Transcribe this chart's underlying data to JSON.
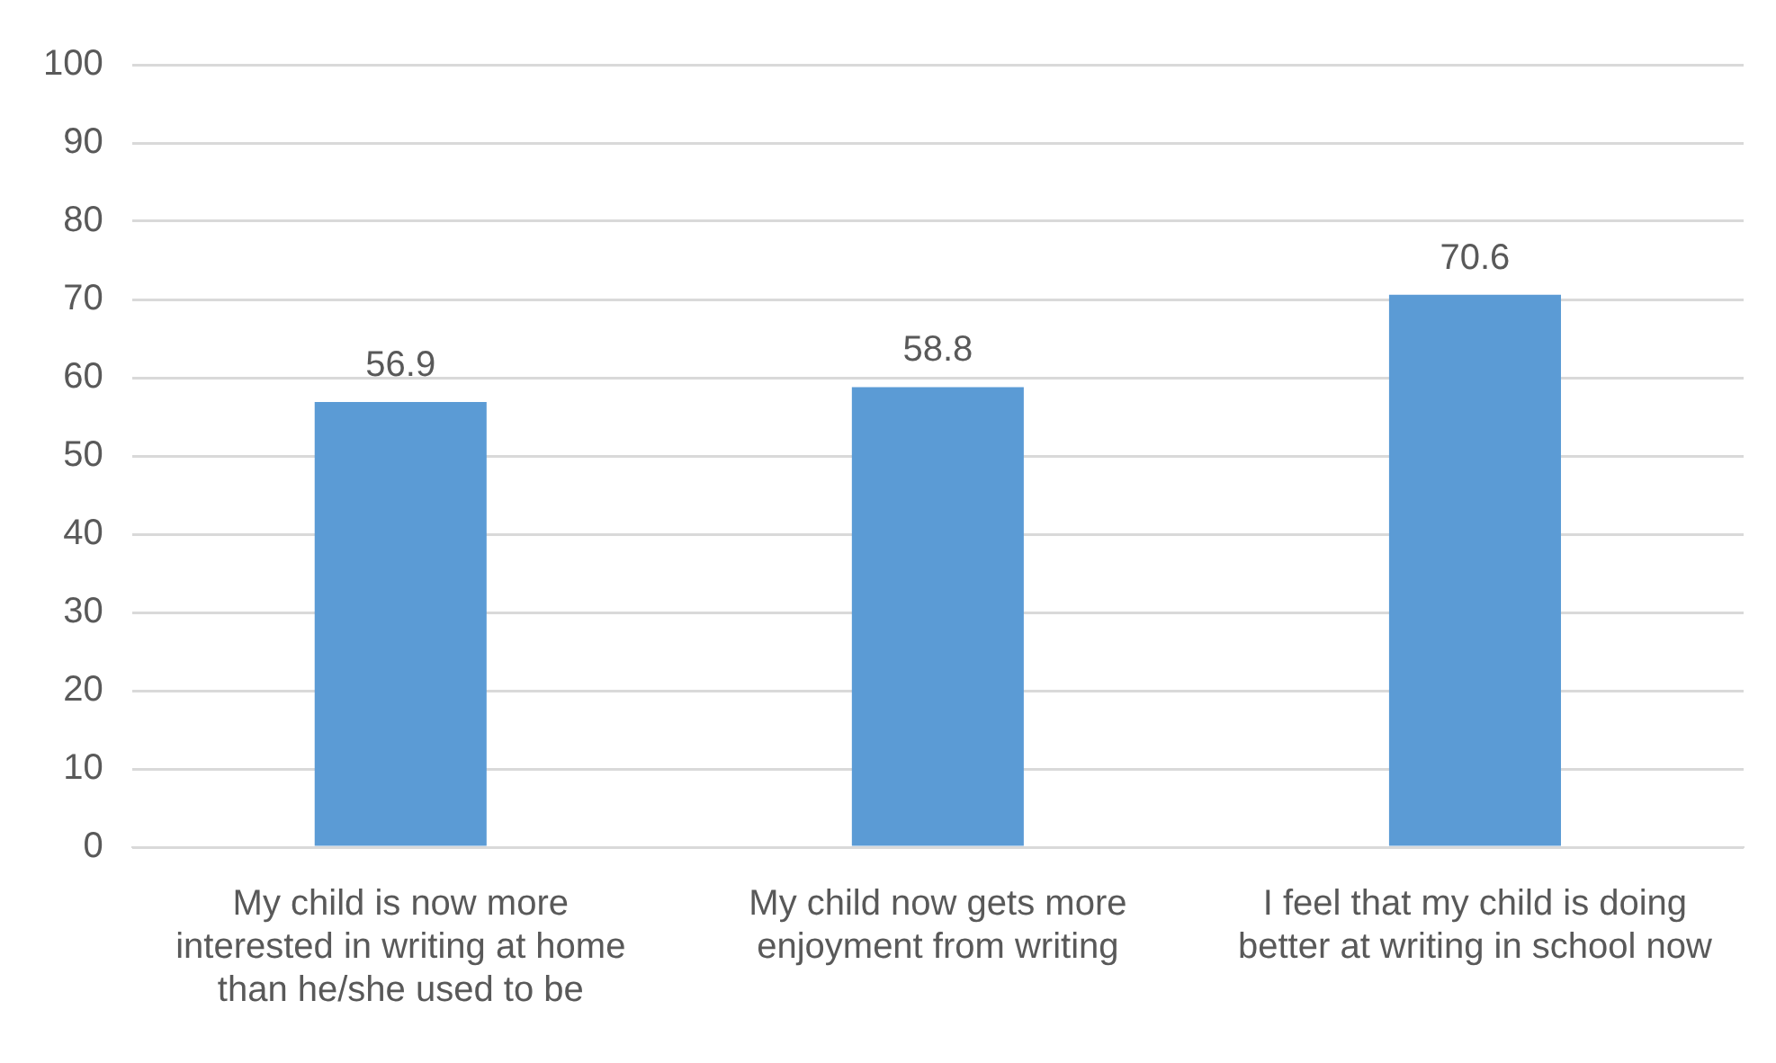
{
  "chart_data": {
    "type": "bar",
    "categories": [
      "My child is now more interested in writing at home than he/she used to be",
      "My child now gets more enjoyment from writing",
      "I feel that my child is doing better at writing in school now"
    ],
    "values": [
      56.9,
      58.8,
      70.6
    ],
    "color": "#5b9bd5",
    "ylim": [
      0,
      100
    ],
    "yticks": [
      0,
      10,
      20,
      30,
      40,
      50,
      60,
      70,
      80,
      90,
      100
    ],
    "grid": "y",
    "data_labels": true,
    "legend": false
  }
}
